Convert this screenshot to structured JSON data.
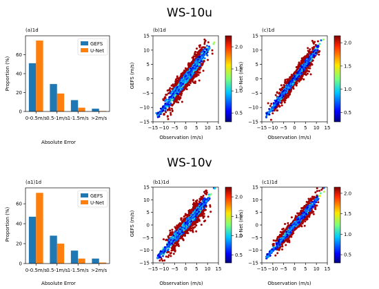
{
  "colors": {
    "gefs": "#1f77b4",
    "unet": "#ff7f0e",
    "scatter_outlier": "#a50000",
    "axis": "#000000"
  },
  "rows": [
    {
      "title": "WS-10u",
      "charts": [
        {
          "panel": "(a)1d",
          "type": "bar",
          "categories": [
            "0-0.5m/s",
            "0.5-1m/s",
            "1-1.5m/s",
            ">2m/s"
          ],
          "series": [
            {
              "name": "GEFS",
              "values": [
                51,
                29,
                12,
                3
              ]
            },
            {
              "name": "U-Net",
              "values": [
                75,
                19,
                4,
                0.5
              ]
            }
          ],
          "xlabel": "Absolute Error",
          "ylabel": "Proportion (%)",
          "ylim": [
            0,
            80
          ],
          "yticks": [
            0,
            20,
            40,
            60
          ],
          "legend": "top-right"
        },
        {
          "panel": "(b)1d",
          "type": "scatter",
          "xlabel": "Observation (m/s)",
          "ylabel": "GEFS (m/s)",
          "xlim": [
            -15,
            15
          ],
          "ylim": [
            -15,
            15
          ],
          "xticks": [
            -15,
            -10,
            -5,
            0,
            5,
            10,
            15
          ],
          "yticks": [
            -15,
            -10,
            -5,
            0,
            5,
            10,
            15
          ],
          "colorbar": {
            "ticks": [
              0.5,
              1.0,
              1.5,
              2.0
            ],
            "range": [
              0.3,
              2.25
            ]
          }
        },
        {
          "panel": "(c)1d",
          "type": "scatter",
          "xlabel": "Observation (m/s)",
          "ylabel": "U-Net (m/s)",
          "xlim": [
            -15,
            15
          ],
          "ylim": [
            -15,
            15
          ],
          "xticks": [
            -15,
            -10,
            -5,
            0,
            5,
            10,
            15
          ],
          "yticks": [
            -15,
            -10,
            -5,
            0,
            5,
            10,
            15
          ],
          "colorbar": {
            "ticks": [
              0.5,
              1.0,
              1.5,
              2.0
            ],
            "range": [
              0.3,
              2.15
            ]
          }
        }
      ]
    },
    {
      "title": "WS-10v",
      "charts": [
        {
          "panel": "(a1)1d",
          "type": "bar",
          "categories": [
            "0-0.5m/s",
            "0.5-1m/s",
            "1-1.5m/s",
            ">2m/s"
          ],
          "series": [
            {
              "name": "GEFS",
              "values": [
                47,
                28,
                13,
                5
              ]
            },
            {
              "name": "U-Net",
              "values": [
                71,
                20,
                5,
                1
              ]
            }
          ],
          "xlabel": "Absolute Error",
          "ylabel": "Proportion (%)",
          "ylim": [
            0,
            76
          ],
          "yticks": [
            0,
            20,
            40,
            60
          ],
          "legend": "top-right"
        },
        {
          "panel": "(b1)1d",
          "type": "scatter",
          "xlabel": "Observation (m/s)",
          "ylabel": "GEFS (m/s)",
          "xlim": [
            -15,
            15
          ],
          "ylim": [
            -15,
            15
          ],
          "xticks": [
            -15,
            -10,
            -5,
            0,
            5,
            10,
            15
          ],
          "yticks": [
            -15,
            -10,
            -5,
            0,
            5,
            10,
            15
          ],
          "colorbar": {
            "ticks": [
              0.5,
              1.0,
              1.5,
              2.0
            ],
            "range": [
              0.3,
              2.25
            ]
          }
        },
        {
          "panel": "(c1)1d",
          "type": "scatter",
          "xlabel": "Observation (m/s)",
          "ylabel": "U-Net (m/s)",
          "xlim": [
            -15,
            15
          ],
          "ylim": [
            -15,
            15
          ],
          "xticks": [
            -15,
            -10,
            -5,
            0,
            5,
            10,
            15
          ],
          "yticks": [
            -15,
            -10,
            -5,
            0,
            5,
            10,
            15
          ],
          "colorbar": {
            "ticks": [
              0.5,
              1.0,
              1.5,
              2.0
            ],
            "range": [
              0.3,
              2.15
            ]
          }
        }
      ]
    }
  ],
  "chart_data": [
    {
      "type": "bar",
      "title": "(a)1d",
      "categories": [
        "0-0.5m/s",
        "0.5-1m/s",
        "1-1.5m/s",
        ">2m/s"
      ],
      "series": [
        {
          "name": "GEFS",
          "values": [
            51,
            29,
            12,
            3
          ]
        },
        {
          "name": "U-Net",
          "values": [
            75,
            19,
            4,
            0.5
          ]
        }
      ],
      "xlabel": "Absolute Error",
      "ylabel": "Proportion (%)",
      "ylim": [
        0,
        80
      ]
    },
    {
      "type": "scatter",
      "title": "(b)1d",
      "xlabel": "Observation (m/s)",
      "ylabel": "GEFS (m/s)",
      "xlim": [
        -15,
        15
      ],
      "ylim": [
        -15,
        15
      ]
    },
    {
      "type": "scatter",
      "title": "(c)1d",
      "xlabel": "Observation (m/s)",
      "ylabel": "U-Net (m/s)",
      "xlim": [
        -15,
        15
      ],
      "ylim": [
        -15,
        15
      ]
    },
    {
      "type": "bar",
      "title": "(a1)1d",
      "categories": [
        "0-0.5m/s",
        "0.5-1m/s",
        "1-1.5m/s",
        ">2m/s"
      ],
      "series": [
        {
          "name": "GEFS",
          "values": [
            47,
            28,
            13,
            5
          ]
        },
        {
          "name": "U-Net",
          "values": [
            71,
            20,
            5,
            1
          ]
        }
      ],
      "xlabel": "Absolute Error",
      "ylabel": "Proportion (%)",
      "ylim": [
        0,
        76
      ]
    },
    {
      "type": "scatter",
      "title": "(b1)1d",
      "xlabel": "Observation (m/s)",
      "ylabel": "GEFS (m/s)",
      "xlim": [
        -15,
        15
      ],
      "ylim": [
        -15,
        15
      ]
    },
    {
      "type": "scatter",
      "title": "(c1)1d",
      "xlabel": "Observation (m/s)",
      "ylabel": "U-Net (m/s)",
      "xlim": [
        -15,
        15
      ],
      "ylim": [
        -15,
        15
      ]
    }
  ]
}
